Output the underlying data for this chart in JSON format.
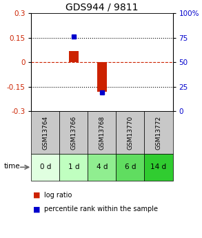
{
  "title": "GDS944 / 9811",
  "samples": [
    "GSM13764",
    "GSM13766",
    "GSM13768",
    "GSM13770",
    "GSM13772"
  ],
  "time_labels": [
    "0 d",
    "1 d",
    "4 d",
    "6 d",
    "14 d"
  ],
  "log_ratio": [
    0.0,
    0.07,
    -0.18,
    0.0,
    0.0
  ],
  "percentile_rank": [
    null,
    76,
    19,
    null,
    null
  ],
  "ylim": [
    -0.3,
    0.3
  ],
  "yticks_left": [
    -0.3,
    -0.15,
    0.0,
    0.15,
    0.3
  ],
  "yticks_right": [
    0,
    25,
    50,
    75,
    100
  ],
  "bar_color": "#cc2200",
  "dot_color": "#0000cc",
  "zero_line_color": "#cc2200",
  "sample_bg_color": "#c8c8c8",
  "time_bg_colors": [
    "#e0ffe0",
    "#c0ffc0",
    "#90ee90",
    "#60dd60",
    "#30cc30"
  ],
  "legend_bar_label": "log ratio",
  "legend_dot_label": "percentile rank within the sample",
  "bar_width": 0.35,
  "title_fontsize": 10,
  "tick_fontsize": 7.5,
  "label_fontsize": 7.5
}
